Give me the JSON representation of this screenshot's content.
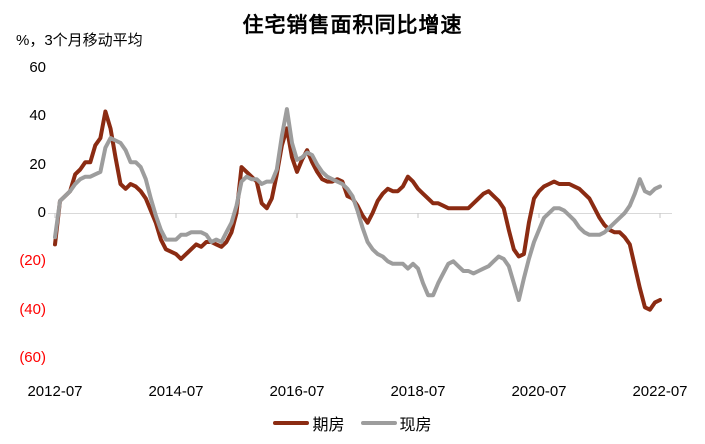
{
  "chart_data": {
    "type": "line",
    "title": "住宅销售面积同比增速",
    "ylabel": "%，3个月移动平均",
    "x_start": "2012-07",
    "x_frequency": "monthly",
    "x_tick_interval_months": 24,
    "x_tick_labels": [
      "2012-07",
      "2014-07",
      "2016-07",
      "2018-07",
      "2020-07",
      "2022-07"
    ],
    "ylim": [
      -60,
      60
    ],
    "grid": false,
    "zero_axis_color": "#d9d9d9",
    "tick_mark_color": "#c6c6c6",
    "negative_tick_label_color": "#ff0000",
    "legend_position": "bottom",
    "y_ticks": [
      {
        "label": "60",
        "value": 60,
        "color": "#000000"
      },
      {
        "label": "40",
        "value": 40,
        "color": "#000000"
      },
      {
        "label": "20",
        "value": 20,
        "color": "#000000"
      },
      {
        "label": "0",
        "value": 0,
        "color": "#000000"
      },
      {
        "label": "(20)",
        "value": -20,
        "color": "#ff0000"
      },
      {
        "label": "(40)",
        "value": -40,
        "color": "#ff0000"
      },
      {
        "label": "(60)",
        "value": -60,
        "color": "#ff0000"
      }
    ],
    "series": [
      {
        "name": "期房",
        "color": "#8b2b12",
        "values": [
          -13,
          5,
          7,
          9,
          16,
          18,
          21,
          21,
          28,
          31,
          42,
          35,
          23,
          12,
          10,
          12,
          11,
          9,
          6,
          1,
          -4,
          -11,
          -15,
          -16,
          -17,
          -19,
          -17,
          -15,
          -13,
          -14,
          -12,
          -12,
          -13,
          -14,
          -12,
          -8,
          0,
          19,
          17,
          15,
          13,
          4,
          2,
          6,
          16,
          28,
          35,
          23,
          17,
          22,
          26,
          21,
          17,
          14,
          13,
          13,
          14,
          13,
          7,
          6,
          3,
          -1,
          -4,
          0,
          5,
          8,
          10,
          9,
          9,
          11,
          15,
          13,
          10,
          8,
          6,
          4,
          4,
          3,
          2,
          2,
          2,
          2,
          2,
          4,
          6,
          8,
          9,
          7,
          5,
          2,
          -7,
          -15,
          -18,
          -17,
          -4,
          6,
          9,
          11,
          12,
          13,
          12,
          12,
          12,
          11,
          10,
          8,
          6,
          2,
          -2,
          -5,
          -7,
          -8,
          -8,
          -10,
          -13,
          -22,
          -31,
          -39,
          -40,
          -37,
          -36
        ]
      },
      {
        "name": "现房",
        "color": "#9d9d9d",
        "values": [
          -10,
          5,
          7,
          9,
          12,
          14,
          15,
          15,
          16,
          17,
          27,
          31,
          30,
          29,
          26,
          21,
          21,
          19,
          14,
          6,
          -1,
          -7,
          -11,
          -11,
          -11,
          -9,
          -9,
          -8,
          -8,
          -8,
          -9,
          -12,
          -11,
          -12,
          -8,
          -4,
          3,
          13,
          15,
          14,
          14,
          12,
          13,
          13,
          18,
          32,
          43,
          29,
          22,
          23,
          25,
          24,
          20,
          17,
          15,
          14,
          13,
          12,
          10,
          7,
          1,
          -6,
          -12,
          -15,
          -17,
          -18,
          -20,
          -21,
          -21,
          -21,
          -23,
          -21,
          -23,
          -29,
          -34,
          -34,
          -29,
          -25,
          -21,
          -20,
          -22,
          -24,
          -24,
          -25,
          -24,
          -23,
          -22,
          -20,
          -18,
          -19,
          -22,
          -29,
          -36,
          -27,
          -19,
          -12,
          -7,
          -2,
          0,
          2,
          2,
          1,
          -1,
          -3,
          -6,
          -8,
          -9,
          -9,
          -9,
          -8,
          -6,
          -4,
          -2,
          0,
          3,
          8,
          14,
          9,
          8,
          10,
          11
        ]
      }
    ]
  }
}
